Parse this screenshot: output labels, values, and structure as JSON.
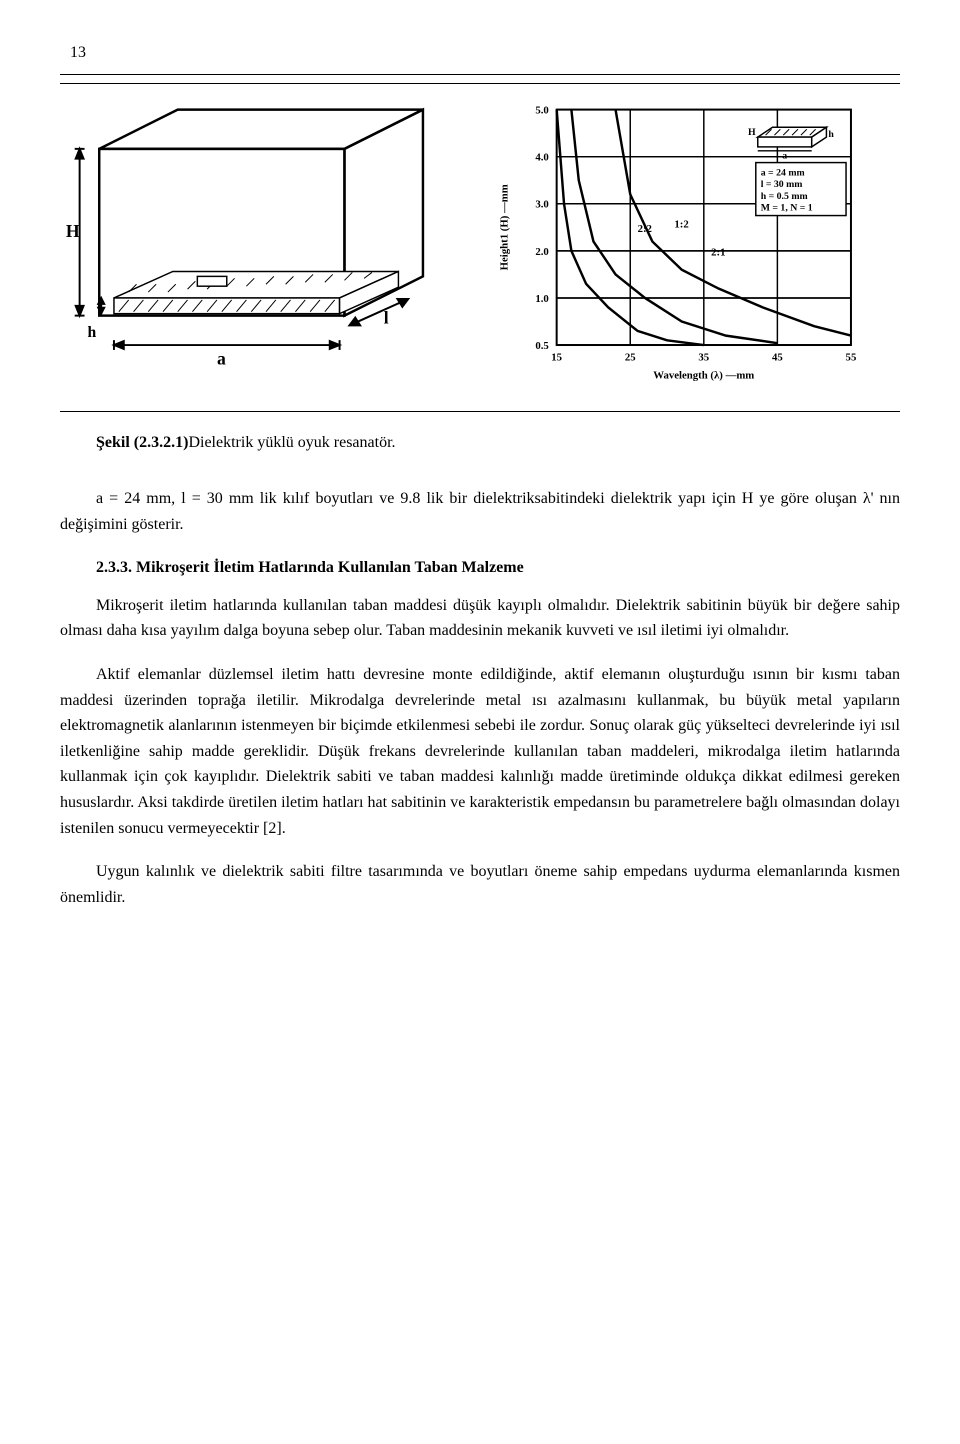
{
  "page_number": "13",
  "figure": {
    "diagram": {
      "labels": {
        "H": "H",
        "h": "h",
        "a": "a",
        "l": "l"
      },
      "stroke": "#000000",
      "fill_hatch": "#000000",
      "bg": "#ffffff"
    },
    "chart": {
      "type": "line",
      "ylabel": "Height1 (H) —mm",
      "xlabel": "Wavelength (λ) —mm",
      "xlim": [
        15,
        55
      ],
      "ylim": [
        0.5,
        5.0
      ],
      "xticks": [
        15,
        25,
        35,
        45,
        55
      ],
      "yticks": [
        0.5,
        1.0,
        2.0,
        3.0,
        4.0,
        5.0
      ],
      "ytick_labels": [
        "0.5",
        "1.0",
        "2.0",
        "3.0",
        "4.0",
        "5.0"
      ],
      "grid_color": "#000000",
      "bg": "#ffffff",
      "curves": [
        {
          "label": "2:2",
          "label_x": 26,
          "label_y": 2.4,
          "points": [
            [
              15,
              5.0
            ],
            [
              16,
              3.0
            ],
            [
              17,
              2.0
            ],
            [
              19,
              1.3
            ],
            [
              22,
              0.9
            ],
            [
              26,
              0.65
            ],
            [
              30,
              0.55
            ],
            [
              35,
              0.5
            ]
          ]
        },
        {
          "label": "1:2",
          "label_x": 31,
          "label_y": 2.5,
          "points": [
            [
              17,
              5.0
            ],
            [
              18,
              3.5
            ],
            [
              20,
              2.2
            ],
            [
              23,
              1.5
            ],
            [
              27,
              1.0
            ],
            [
              32,
              0.75
            ],
            [
              38,
              0.6
            ],
            [
              45,
              0.52
            ]
          ]
        },
        {
          "label": "2:1",
          "label_x": 36,
          "label_y": 1.9,
          "points": [
            [
              23,
              5.0
            ],
            [
              25,
              3.2
            ],
            [
              28,
              2.2
            ],
            [
              32,
              1.6
            ],
            [
              37,
              1.2
            ],
            [
              43,
              0.9
            ],
            [
              50,
              0.7
            ],
            [
              55,
              0.6
            ]
          ]
        }
      ],
      "inset": {
        "labels": {
          "H": "H",
          "h": "h",
          "a": "a"
        },
        "params": [
          "a = 24 mm",
          "l = 30 mm",
          "h = 0.5 mm",
          "M = 1, N = 1"
        ]
      },
      "label_fontsize": 11,
      "tick_fontsize": 11
    }
  },
  "caption_prefix": "Şekil (2.3.2.1)",
  "caption_rest": "Dielektrik yüklü oyuk resanatör.",
  "caption_line2": "a = 24 mm, l = 30 mm lik kılıf boyutları ve 9.8 lik bir dielektriksabitindeki  dielektrik yapı için H ye göre oluşan λ' nın değişimini gösterir.",
  "section": {
    "number": "2.3.3.",
    "title": "Mikroşerit İletim Hatlarında Kullanılan Taban Malzeme"
  },
  "para1": "Mikroşerit iletim hatlarında kullanılan taban maddesi düşük kayıplı olmalıdır. Dielektrik sabitinin büyük bir değere sahip olması daha kısa yayılım dalga boyuna sebep olur. Taban maddesinin mekanik kuvveti ve  ısıl iletimi iyi olmalıdır.",
  "para2": "Aktif elemanlar düzlemsel iletim  hattı devresine monte edildiğinde, aktif elemanın oluşturduğu  ısının bir kısmı taban maddesi  üzerinden toprağa iletilir. Mikrodalga devrelerinde metal ısı azalmasını kullanmak, bu büyük  metal yapıların elektromagnetik alanlarının istenmeyen bir biçimde etkilenmesi sebebi ile  zordur. Sonuç olarak güç yükselteci devrelerinde iyi ısıl iletkenliğine sahip madde gereklidir. Düşük frekans devrelerinde kullanılan taban maddeleri, mikrodalga iletim hatlarında kullanmak için çok kayıplıdır. Dielektrik sabiti ve taban maddesi kalınlığı madde üretiminde  oldukça dikkat edilmesi gereken hususlardır. Aksi takdirde üretilen iletim hatları hat sabitinin  ve karakteristik empedansın bu parametrelere bağlı olmasından dolayı istenilen sonucu vermeyecektir [2].",
  "para3": "Uygun kalınlık ve dielektrik sabiti filtre tasarımında ve boyutları öneme sahip empedans uydurma elemanlarında kısmen önemlidir."
}
